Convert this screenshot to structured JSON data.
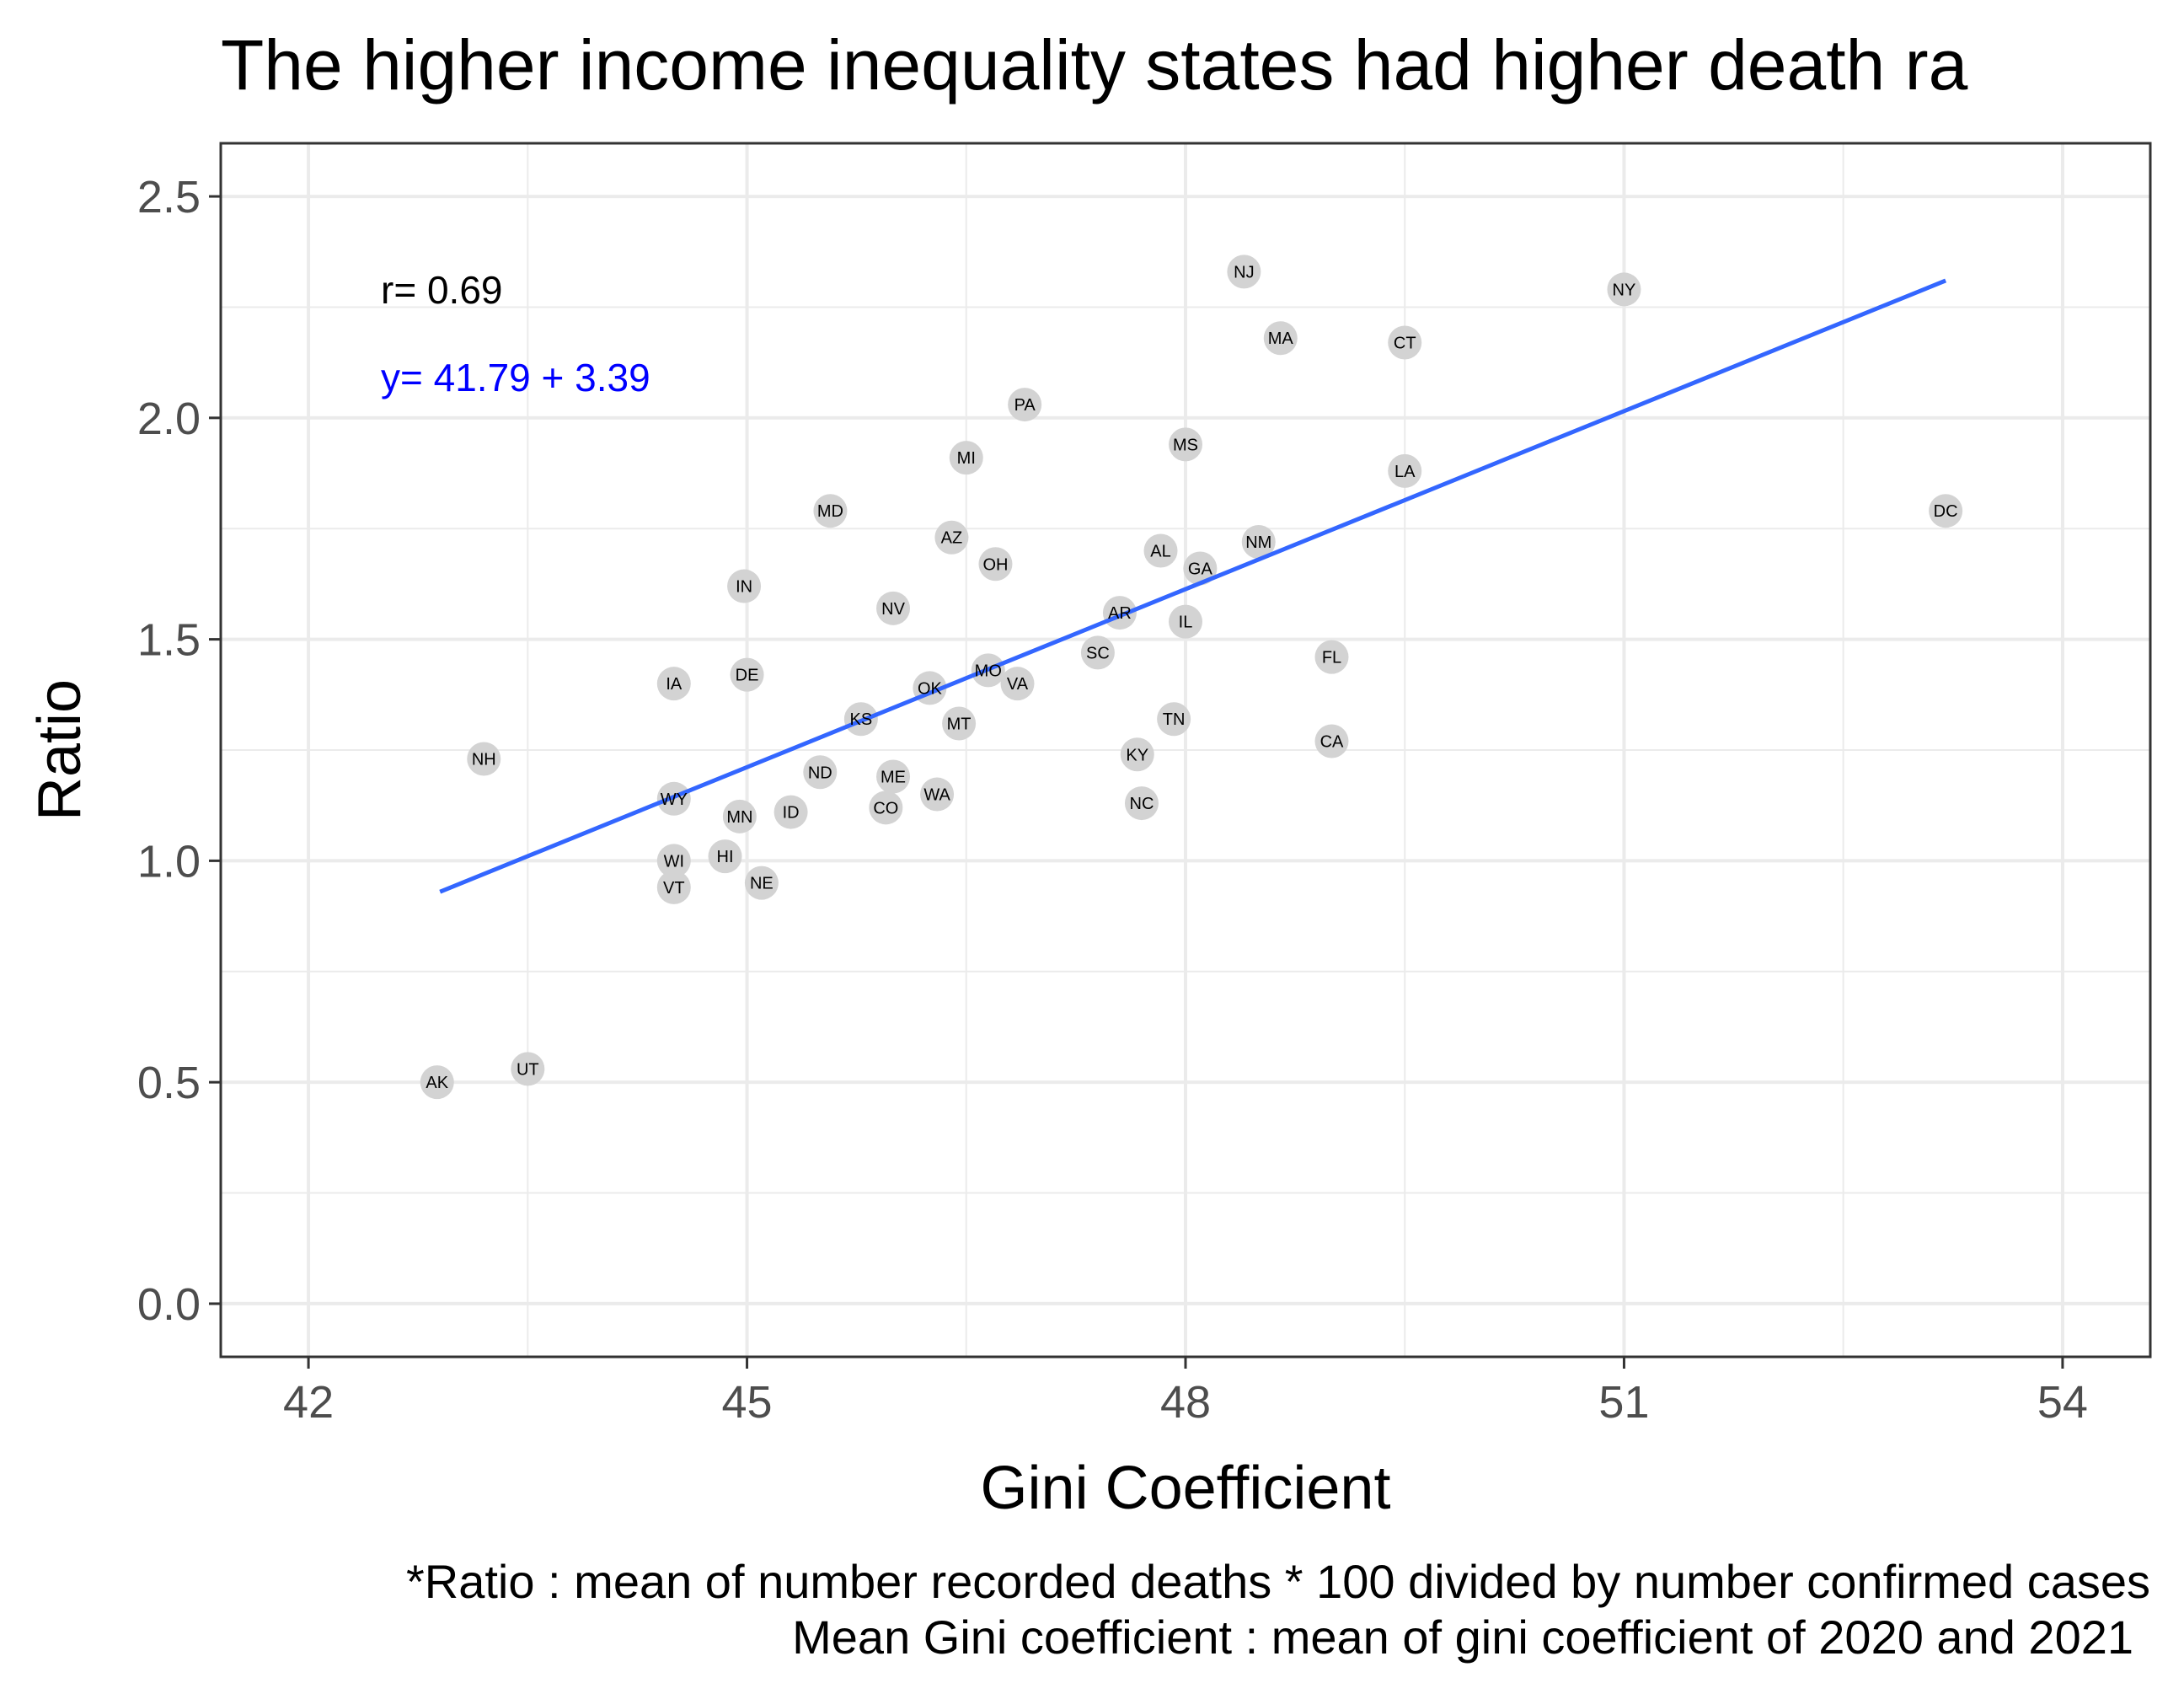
{
  "chart_data": {
    "type": "scatter",
    "title": "The higher income inequality states had higher death ra",
    "xlabel": "Gini Coefficient",
    "ylabel": "Ratio",
    "xlim": [
      41.4,
      54.6
    ],
    "ylim": [
      -0.12,
      2.62
    ],
    "x_ticks": [
      42,
      45,
      48,
      51,
      54
    ],
    "y_ticks": [
      0.0,
      0.5,
      1.0,
      1.5,
      2.0,
      2.5
    ],
    "x_tick_labels": [
      "42",
      "45",
      "48",
      "51",
      "54"
    ],
    "y_tick_labels": [
      "0.0",
      "0.5",
      "1.0",
      "1.5",
      "2.0",
      "2.5"
    ],
    "grid": true,
    "legend": "none",
    "annotations": {
      "r": "r= 0.69",
      "equation": "y= 41.79 + 3.39"
    },
    "fit_line": {
      "x": [
        42.9,
        53.2
      ],
      "y": [
        0.93,
        2.31
      ],
      "color": "#3366FF"
    },
    "caption": [
      "*Ratio : mean of number recorded deaths * 100 divided by number confirmed cases",
      "Mean Gini coefficient : mean of gini coefficient of 2020 and 2021"
    ],
    "point_color": "#d3d3d3",
    "annotation_color": "#0000FF",
    "points": [
      {
        "label": "AK",
        "x": 42.88,
        "y": 0.5
      },
      {
        "label": "UT",
        "x": 43.5,
        "y": 0.53
      },
      {
        "label": "NH",
        "x": 43.2,
        "y": 1.23
      },
      {
        "label": "IA",
        "x": 44.5,
        "y": 1.4
      },
      {
        "label": "WY",
        "x": 44.5,
        "y": 1.14
      },
      {
        "label": "WI",
        "x": 44.5,
        "y": 1.0
      },
      {
        "label": "VT",
        "x": 44.5,
        "y": 0.94
      },
      {
        "label": "HI",
        "x": 44.85,
        "y": 1.01
      },
      {
        "label": "MN",
        "x": 44.95,
        "y": 1.1
      },
      {
        "label": "NE",
        "x": 45.1,
        "y": 0.95
      },
      {
        "label": "IN",
        "x": 44.98,
        "y": 1.62
      },
      {
        "label": "DE",
        "x": 45.0,
        "y": 1.42
      },
      {
        "label": "ID",
        "x": 45.3,
        "y": 1.11
      },
      {
        "label": "ND",
        "x": 45.5,
        "y": 1.2
      },
      {
        "label": "MD",
        "x": 45.57,
        "y": 1.79
      },
      {
        "label": "KS",
        "x": 45.78,
        "y": 1.32
      },
      {
        "label": "CO",
        "x": 45.95,
        "y": 1.12
      },
      {
        "label": "ME",
        "x": 46.0,
        "y": 1.19
      },
      {
        "label": "NV",
        "x": 46.0,
        "y": 1.57
      },
      {
        "label": "OK",
        "x": 46.25,
        "y": 1.39
      },
      {
        "label": "WA",
        "x": 46.3,
        "y": 1.15
      },
      {
        "label": "AZ",
        "x": 46.4,
        "y": 1.73
      },
      {
        "label": "MT",
        "x": 46.45,
        "y": 1.31
      },
      {
        "label": "MI",
        "x": 46.5,
        "y": 1.91
      },
      {
        "label": "MO",
        "x": 46.65,
        "y": 1.43
      },
      {
        "label": "OH",
        "x": 46.7,
        "y": 1.67
      },
      {
        "label": "VA",
        "x": 46.85,
        "y": 1.4
      },
      {
        "label": "PA",
        "x": 46.9,
        "y": 2.03
      },
      {
        "label": "SC",
        "x": 47.4,
        "y": 1.47
      },
      {
        "label": "AR",
        "x": 47.55,
        "y": 1.56
      },
      {
        "label": "KY",
        "x": 47.67,
        "y": 1.24
      },
      {
        "label": "NC",
        "x": 47.7,
        "y": 1.13
      },
      {
        "label": "AL",
        "x": 47.83,
        "y": 1.7
      },
      {
        "label": "TN",
        "x": 47.92,
        "y": 1.32
      },
      {
        "label": "MS",
        "x": 48.0,
        "y": 1.94
      },
      {
        "label": "IL",
        "x": 48.0,
        "y": 1.54
      },
      {
        "label": "GA",
        "x": 48.1,
        "y": 1.66
      },
      {
        "label": "NJ",
        "x": 48.4,
        "y": 2.33
      },
      {
        "label": "NM",
        "x": 48.5,
        "y": 1.72
      },
      {
        "label": "MA",
        "x": 48.65,
        "y": 2.18
      },
      {
        "label": "FL",
        "x": 49.0,
        "y": 1.46
      },
      {
        "label": "CA",
        "x": 49.0,
        "y": 1.27
      },
      {
        "label": "CT",
        "x": 49.5,
        "y": 2.17
      },
      {
        "label": "LA",
        "x": 49.5,
        "y": 1.88
      },
      {
        "label": "NY",
        "x": 51.0,
        "y": 2.29
      },
      {
        "label": "DC",
        "x": 53.2,
        "y": 1.79
      }
    ]
  }
}
